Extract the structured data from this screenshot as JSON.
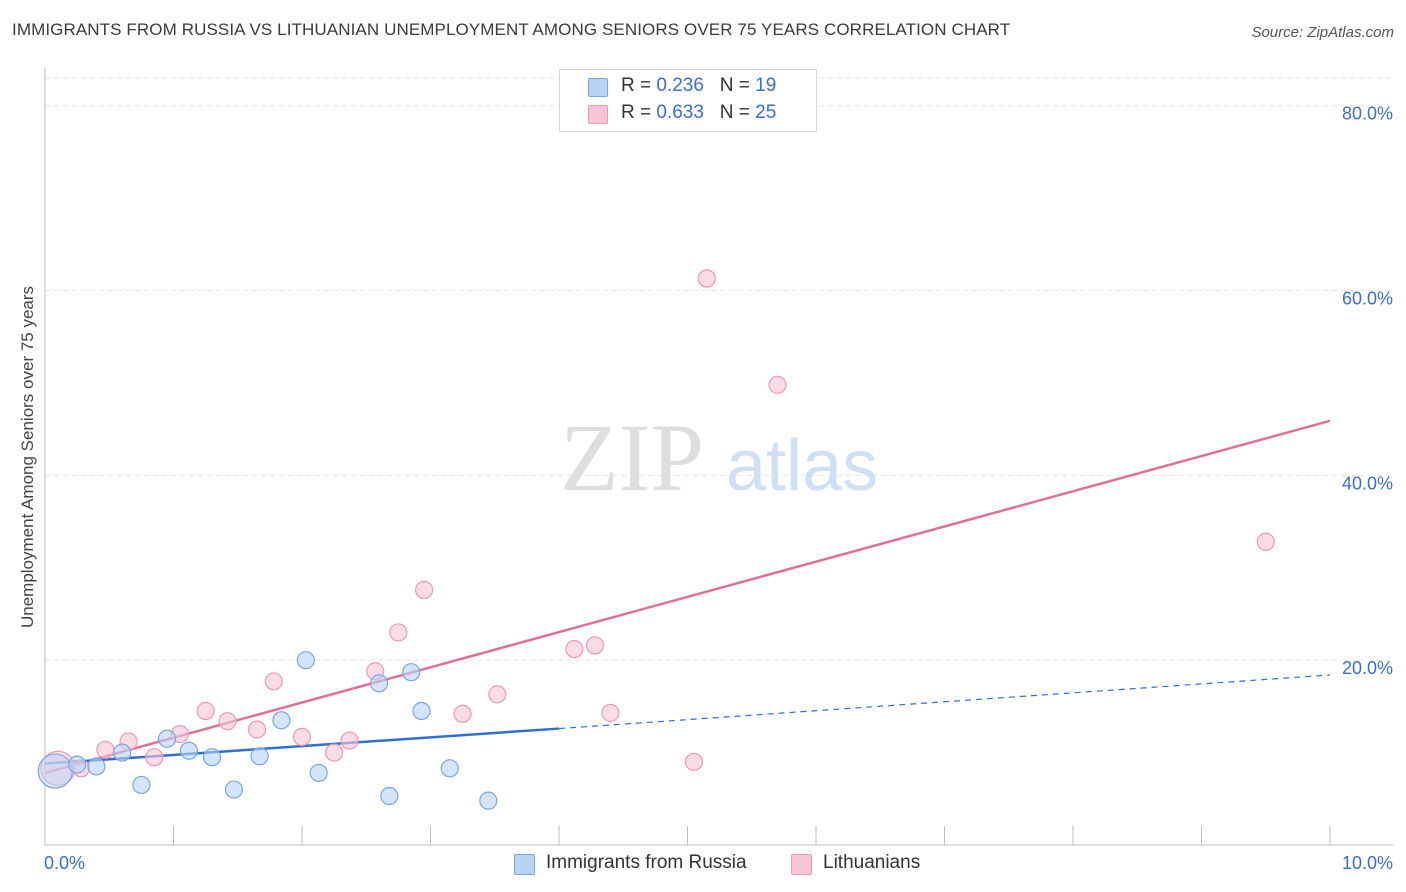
{
  "header": {
    "title": "IMMIGRANTS FROM RUSSIA VS LITHUANIAN UNEMPLOYMENT AMONG SENIORS OVER 75 YEARS CORRELATION CHART",
    "source": "Source: ZipAtlas.com"
  },
  "watermark": {
    "zip": "ZIP",
    "atlas": "atlas"
  },
  "legend_top": {
    "rows": [
      {
        "r_label": "R = ",
        "r_value": "0.236",
        "n_label": "N = ",
        "n_value": "19"
      },
      {
        "r_label": "R = ",
        "r_value": "0.633",
        "n_label": "N = ",
        "n_value": "25"
      }
    ]
  },
  "legend_bottom": {
    "series1": "Immigrants from Russia",
    "series2": "Lithuanians"
  },
  "colors": {
    "russia_fill": "#b9d3f5",
    "russia_stroke": "#7aa6e0",
    "russia_line": "#2f6fd0",
    "lith_fill": "#f9c5d5",
    "lith_stroke": "#ee9ab4",
    "lith_line": "#e0709a",
    "tick_label": "#3a6fd1",
    "grid": "#e6e6e6"
  },
  "chart_data": {
    "type": "scatter",
    "title": "IMMIGRANTS FROM RUSSIA VS LITHUANIAN UNEMPLOYMENT AMONG SENIORS OVER 75 YEARS CORRELATION CHART",
    "xlabel": "",
    "ylabel": "Unemployment Among Seniors over 75 years",
    "xlim": [
      0,
      10
    ],
    "ylim": [
      0,
      83
    ],
    "x_tick_labels": [
      "0.0%",
      "10.0%"
    ],
    "y_ticks": [
      20,
      40,
      60,
      80
    ],
    "y_tick_labels": [
      "20.0%",
      "40.0%",
      "60.0%",
      "80.0%"
    ],
    "grid": true,
    "legend_position": "top-center",
    "series": [
      {
        "name": "Immigrants from Russia",
        "r": 0.236,
        "n": 19,
        "points": [
          {
            "x": 0.08,
            "y": 8.0,
            "big": true
          },
          {
            "x": 0.25,
            "y": 8.7
          },
          {
            "x": 0.4,
            "y": 8.5
          },
          {
            "x": 0.6,
            "y": 10.0
          },
          {
            "x": 0.75,
            "y": 6.5
          },
          {
            "x": 0.95,
            "y": 11.5
          },
          {
            "x": 1.12,
            "y": 10.2
          },
          {
            "x": 1.3,
            "y": 9.5
          },
          {
            "x": 1.47,
            "y": 6.0
          },
          {
            "x": 1.67,
            "y": 9.6
          },
          {
            "x": 1.84,
            "y": 13.5
          },
          {
            "x": 2.03,
            "y": 20.0
          },
          {
            "x": 2.13,
            "y": 7.8
          },
          {
            "x": 2.6,
            "y": 17.5
          },
          {
            "x": 2.68,
            "y": 5.3
          },
          {
            "x": 2.85,
            "y": 18.7
          },
          {
            "x": 2.93,
            "y": 14.5
          },
          {
            "x": 3.15,
            "y": 8.3
          },
          {
            "x": 3.45,
            "y": 4.8
          }
        ],
        "trend_solid": {
          "x0": 0,
          "y0": 8.8,
          "x1": 4.0,
          "y1": 12.6
        },
        "trend_dashed": {
          "x0": 4.0,
          "y0": 12.6,
          "x1": 10.0,
          "y1": 18.4
        }
      },
      {
        "name": "Lithuanians",
        "r": 0.633,
        "n": 25,
        "points": [
          {
            "x": 0.1,
            "y": 8.3,
            "big": true
          },
          {
            "x": 0.28,
            "y": 8.3
          },
          {
            "x": 0.47,
            "y": 10.3
          },
          {
            "x": 0.65,
            "y": 11.2
          },
          {
            "x": 0.85,
            "y": 9.5
          },
          {
            "x": 1.05,
            "y": 12.0
          },
          {
            "x": 1.25,
            "y": 14.5
          },
          {
            "x": 1.42,
            "y": 13.4
          },
          {
            "x": 1.65,
            "y": 12.5
          },
          {
            "x": 1.78,
            "y": 17.7
          },
          {
            "x": 2.0,
            "y": 11.7
          },
          {
            "x": 2.25,
            "y": 10.0
          },
          {
            "x": 2.37,
            "y": 11.3
          },
          {
            "x": 2.57,
            "y": 18.8
          },
          {
            "x": 2.75,
            "y": 23.0
          },
          {
            "x": 2.95,
            "y": 27.6
          },
          {
            "x": 3.25,
            "y": 14.2
          },
          {
            "x": 3.52,
            "y": 16.3
          },
          {
            "x": 4.12,
            "y": 21.2
          },
          {
            "x": 4.28,
            "y": 21.6
          },
          {
            "x": 4.4,
            "y": 14.3
          },
          {
            "x": 5.05,
            "y": 9.0
          },
          {
            "x": 5.15,
            "y": 61.3
          },
          {
            "x": 5.7,
            "y": 49.8
          },
          {
            "x": 9.5,
            "y": 32.8
          }
        ],
        "trend_solid": {
          "x0": 0,
          "y0": 7.8,
          "x1": 10.0,
          "y1": 45.9
        }
      }
    ]
  }
}
